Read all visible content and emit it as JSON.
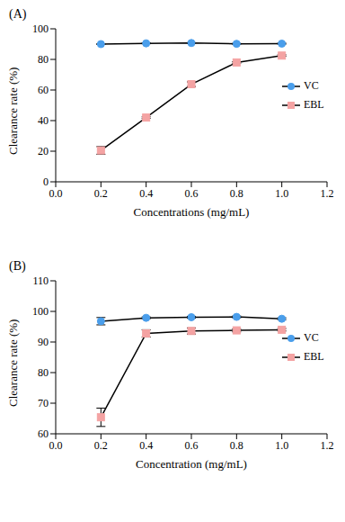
{
  "chart_data": [
    {
      "type": "line",
      "title": "(A)",
      "x_label": "Concentrations (mg/mL)",
      "y_label": "Clearance rate (%)",
      "x": [
        0.2,
        0.4,
        0.6,
        0.8,
        1.0
      ],
      "xlim": [
        0,
        1.2
      ],
      "xticks": [
        {
          "value": 0,
          "label": "0.0"
        },
        0.2,
        0.4,
        0.6,
        0.8,
        {
          "value": 1,
          "label": "1.0"
        },
        1.2
      ],
      "ylim": [
        0,
        100
      ],
      "yticks": [
        0,
        20,
        40,
        60,
        80,
        100
      ],
      "grid": false,
      "legend": "right",
      "series": [
        {
          "name": "VC",
          "color": "#4a9eeb",
          "marker": "circle",
          "values": [
            90.0,
            90.5,
            90.7,
            90.2,
            90.3
          ],
          "errors": [
            0.3,
            0.3,
            0.3,
            0.3,
            0.3
          ]
        },
        {
          "name": "EBL",
          "color": "#f4a3a3",
          "marker": "square",
          "values": [
            20.5,
            42.0,
            63.8,
            78.0,
            82.5
          ],
          "errors": [
            2.5,
            0.5,
            1.5,
            0.5,
            0.5
          ]
        }
      ]
    },
    {
      "type": "line",
      "title": "(B)",
      "x_label": "Concentration (mg/mL)",
      "y_label": "Clearance rate (%)",
      "x": [
        0.2,
        0.4,
        0.6,
        0.8,
        1.0
      ],
      "xlim": [
        0,
        1.2
      ],
      "xticks": [
        {
          "value": 0,
          "label": "0.0"
        },
        0.2,
        0.4,
        0.6,
        0.8,
        {
          "value": 1,
          "label": "1.0"
        },
        1.2
      ],
      "ylim": [
        60,
        110
      ],
      "yticks": [
        60,
        70,
        80,
        90,
        100,
        110
      ],
      "grid": false,
      "legend": "right",
      "series": [
        {
          "name": "VC",
          "color": "#4a9eeb",
          "marker": "circle",
          "values": [
            96.8,
            97.9,
            98.1,
            98.2,
            97.6
          ],
          "errors": [
            1.2,
            0.3,
            0.3,
            0.3,
            0.3
          ]
        },
        {
          "name": "EBL",
          "color": "#f4a3a3",
          "marker": "square",
          "values": [
            65.4,
            92.8,
            93.6,
            93.8,
            94.0
          ],
          "errors": [
            3.0,
            1.2,
            1.0,
            0.5,
            0.4
          ]
        }
      ]
    }
  ]
}
